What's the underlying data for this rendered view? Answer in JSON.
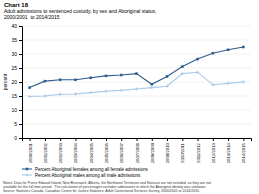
{
  "chart_data": {
    "type": "line",
    "title": "Chart 18",
    "subtitle": [
      "Adult admissions to sentenced custody, by sex and Aboriginal status,",
      "2000/2001  to 2014/2015"
    ],
    "y_label": "percent",
    "categories": [
      "2000/2001",
      "2001/2002",
      "2002/2003",
      "2003/2004",
      "2004/2005",
      "2005/2006",
      "2006/2007",
      "2007/2008",
      "2008/2009",
      "2009/2010",
      "2010/2011",
      "2011/2012",
      "2012/2013",
      "2013/2014",
      "2014/2015"
    ],
    "series": [
      {
        "name": "Percent Aboriginal females among all female admissions",
        "color": "#2e5d8e",
        "marker": "square",
        "values": [
          18.0,
          20.3,
          20.8,
          20.8,
          21.5,
          22.2,
          22.5,
          23.0,
          19.2,
          22.0,
          25.5,
          28.2,
          30.3,
          31.5,
          32.5
        ]
      },
      {
        "name": "Percent Aboriginal males among all male admissions",
        "color": "#a8c8e8",
        "marker": "plus",
        "values": [
          14.8,
          15.0,
          15.6,
          15.7,
          16.2,
          16.7,
          17.0,
          17.5,
          18.0,
          18.5,
          23.0,
          23.5,
          19.0,
          19.5,
          20.0
        ]
      }
    ],
    "ylim": [
      0,
      40
    ],
    "yticks": [
      0,
      5,
      10,
      15,
      20,
      25,
      30,
      35,
      40
    ],
    "grid": true,
    "legend": "bottom",
    "annotations": [
      "Notes: Data for Prince Edward Island, New Brunswick, Alberta, the Northwest Territories and Nunavut are not included, as they are not",
      "available for the full time period.  The calculation of percentages excludes admissions in which the Aboriginal identity was unknown.",
      "Source: Statistics Canada, Canadian Centre for Justice Statistics, Adult Correctional Services Survey, 2000/2001 to 2014/2015."
    ]
  }
}
